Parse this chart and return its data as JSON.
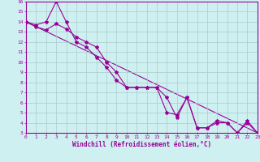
{
  "line1_x": [
    0,
    1,
    2,
    3,
    4,
    5,
    6,
    7,
    8,
    9,
    10,
    11,
    12,
    13,
    14,
    15,
    16,
    17,
    18,
    19,
    20,
    21,
    22,
    23
  ],
  "line1_y": [
    14.0,
    13.7,
    14.0,
    16.0,
    14.0,
    12.0,
    11.5,
    10.5,
    9.5,
    8.2,
    7.5,
    7.5,
    7.5,
    7.5,
    6.5,
    4.5,
    6.5,
    3.5,
    3.5,
    4.2,
    4.0,
    3.0,
    4.2,
    3.0
  ],
  "line2_x": [
    0,
    1,
    2,
    3,
    4,
    5,
    6,
    7,
    8,
    9,
    10,
    11,
    12,
    13,
    14,
    15,
    16,
    17,
    18,
    19,
    20,
    21,
    22,
    23
  ],
  "line2_y": [
    14.0,
    13.5,
    13.2,
    13.8,
    13.3,
    12.5,
    12.0,
    11.5,
    10.0,
    9.0,
    7.5,
    7.5,
    7.5,
    7.5,
    5.0,
    4.8,
    6.5,
    3.5,
    3.5,
    4.0,
    4.0,
    3.0,
    4.0,
    3.0
  ],
  "line3_x": [
    0,
    23
  ],
  "line3_y": [
    14.0,
    3.0
  ],
  "color": "#990099",
  "marker": "*",
  "markersize": 3,
  "linewidth": 0.8,
  "xlabel": "Windchill (Refroidissement éolien,°C)",
  "xlim": [
    0,
    23
  ],
  "ylim": [
    3,
    16
  ],
  "xticks": [
    0,
    1,
    2,
    3,
    4,
    5,
    6,
    7,
    8,
    9,
    10,
    11,
    12,
    13,
    14,
    15,
    16,
    17,
    18,
    19,
    20,
    21,
    22,
    23
  ],
  "yticks": [
    3,
    4,
    5,
    6,
    7,
    8,
    9,
    10,
    11,
    12,
    13,
    14,
    15,
    16
  ],
  "bg_color": "#cff0f0",
  "grid_color": "#aacccc"
}
